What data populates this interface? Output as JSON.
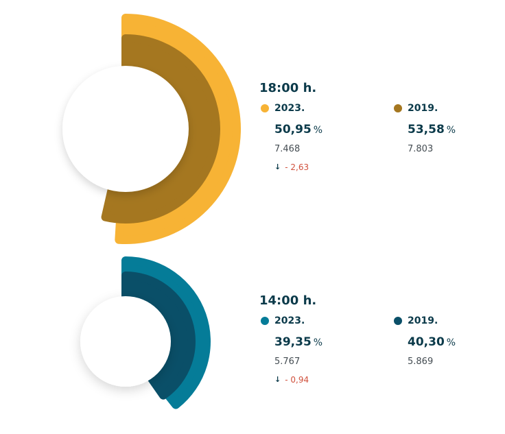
{
  "chart_data": [
    {
      "type": "donut",
      "title": "18:00 h.",
      "unit": "%",
      "series": [
        {
          "name": "2023.",
          "value": 50.95,
          "value_label": "50,95",
          "count": "7.468",
          "color": "#F7B335",
          "delta_label": "- 2,63"
        },
        {
          "name": "2019.",
          "value": 53.58,
          "value_label": "53,58",
          "count": "7.803",
          "color": "#A57720"
        }
      ]
    },
    {
      "type": "donut",
      "title": "14:00 h.",
      "unit": "%",
      "series": [
        {
          "name": "2023.",
          "value": 39.35,
          "value_label": "39,35",
          "count": "5.767",
          "color": "#057C98",
          "delta_label": "- 0,94"
        },
        {
          "name": "2019.",
          "value": 40.3,
          "value_label": "40,30",
          "count": "5.869",
          "color": "#0A4F68"
        }
      ]
    }
  ],
  "delta_icon": "arrow-down-icon",
  "colors": {
    "text": "#0B3A4A",
    "negative": "#D0503C",
    "count": "#444C52"
  }
}
